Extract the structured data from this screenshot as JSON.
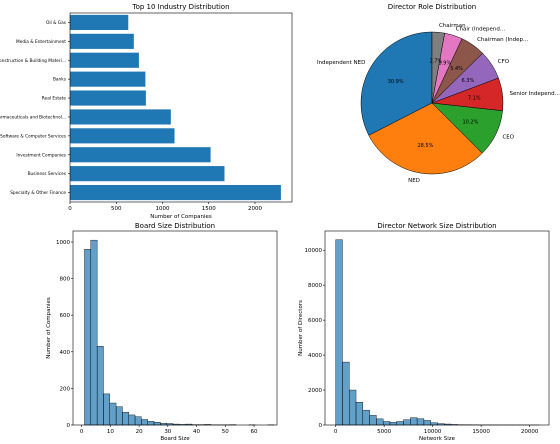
{
  "chart_data": [
    {
      "type": "bar",
      "orientation": "horizontal",
      "title": "Top 10 Industry Distribution",
      "xlabel": "Number of Companies",
      "ylabel": "",
      "xlim": [
        0,
        2400
      ],
      "xticks": [
        0,
        500,
        1000,
        1500,
        2000
      ],
      "color": "#1f77b4",
      "categories": [
        "Specialty & Other Finance",
        "Business Services",
        "Investment Companies",
        "Software & Computer Services",
        "Pharmaceuticals and Biotechnol...",
        "Real Estate",
        "Banks",
        "Construction & Building Materi...",
        "Media & Entertainment",
        "Oil & Gas"
      ],
      "values": [
        2280,
        1670,
        1520,
        1130,
        1090,
        820,
        815,
        745,
        690,
        630
      ]
    },
    {
      "type": "pie",
      "title": "Director Role Distribution",
      "slices": [
        {
          "label": "Independent NED",
          "value": 30.9,
          "pct": "30.9%",
          "color": "#1f77b4"
        },
        {
          "label": "NED",
          "value": 28.5,
          "pct": "28.5%",
          "color": "#ff7f0e"
        },
        {
          "label": "CEO",
          "value": 10.2,
          "pct": "10.2%",
          "color": "#2ca02c"
        },
        {
          "label": "Senior Independ...",
          "value": 7.1,
          "pct": "7.1%",
          "color": "#d62728"
        },
        {
          "label": "CFO",
          "value": 6.3,
          "pct": "6.3%",
          "color": "#9467bd"
        },
        {
          "label": "Chairman (Indep...",
          "value": 5.4,
          "pct": "5.4%",
          "color": "#8c564b"
        },
        {
          "label": "Chair (Independ...",
          "value": 3.9,
          "pct": "3.9%",
          "color": "#e377c2"
        },
        {
          "label": "Chairman",
          "value": 2.7,
          "pct": "2.7%",
          "color": "#7f7f7f"
        }
      ]
    },
    {
      "type": "histogram",
      "title": "Board Size Distribution",
      "xlabel": "Board Size",
      "ylabel": "Number of Companies",
      "xlim": [
        -3,
        68
      ],
      "ylim": [
        0,
        1060
      ],
      "xticks": [
        0,
        10,
        20,
        30,
        40,
        50,
        60
      ],
      "yticks": [
        0,
        200,
        400,
        600,
        800,
        1000
      ],
      "bin_start": 1,
      "bin_width": 2.2,
      "color": "#1f77b4",
      "counts": [
        960,
        1010,
        430,
        170,
        120,
        100,
        70,
        55,
        45,
        30,
        20,
        15,
        10,
        8,
        5,
        3,
        5,
        2,
        2,
        3,
        1,
        1,
        1,
        2,
        0,
        0,
        1,
        0,
        0,
        1
      ]
    },
    {
      "type": "histogram",
      "title": "Director Network Size Distribution",
      "xlabel": "Network Size",
      "ylabel": "Number of Directors",
      "xlim": [
        -1100,
        22000
      ],
      "ylim": [
        0,
        11100
      ],
      "xticks": [
        0,
        5000,
        10000,
        15000,
        20000
      ],
      "yticks": [
        0,
        2000,
        4000,
        6000,
        8000,
        10000
      ],
      "bin_start": 0,
      "bin_width": 700,
      "color": "#1f77b4",
      "counts": [
        10600,
        3600,
        2000,
        1300,
        850,
        550,
        350,
        200,
        150,
        200,
        300,
        420,
        360,
        260,
        130,
        80,
        55,
        30,
        18,
        12,
        8,
        6,
        5,
        4,
        3,
        3,
        2,
        2,
        1,
        1
      ]
    }
  ]
}
